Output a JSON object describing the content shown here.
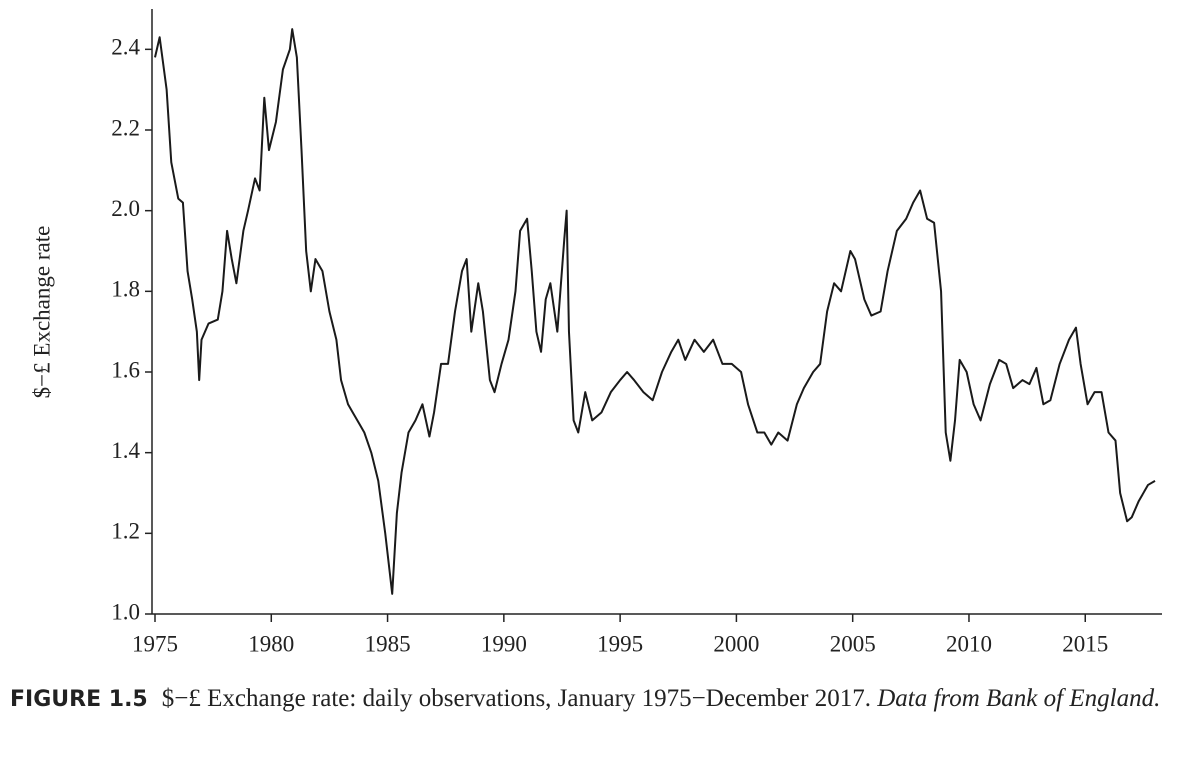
{
  "chart_data": {
    "type": "line",
    "ylabel": "$−£ Exchange rate",
    "caption": {
      "label": "FIGURE 1.5",
      "text": "$−£ Exchange rate: daily observations, January 1975−December 2017.",
      "source": "Data from Bank of England."
    },
    "color": "#1a1a1a",
    "xlim": [
      1975,
      2018.3
    ],
    "xticks": [
      1975,
      1980,
      1985,
      1990,
      1995,
      2000,
      2005,
      2010,
      2015
    ],
    "ylim": [
      1.0,
      2.5
    ],
    "yticks": [
      {
        "value": 1.0,
        "label": "1.0"
      },
      1.2,
      1.4,
      1.6,
      1.8,
      {
        "value": 2.0,
        "label": "2.0"
      },
      2.2,
      2.4
    ],
    "x": [
      1975.0,
      1975.2,
      1975.5,
      1975.7,
      1976.0,
      1976.2,
      1976.4,
      1976.6,
      1976.8,
      1976.9,
      1977.0,
      1977.3,
      1977.7,
      1977.9,
      1978.1,
      1978.3,
      1978.5,
      1978.8,
      1979.0,
      1979.3,
      1979.5,
      1979.7,
      1979.9,
      1980.2,
      1980.5,
      1980.8,
      1980.9,
      1981.1,
      1981.3,
      1981.5,
      1981.7,
      1981.9,
      1982.2,
      1982.5,
      1982.8,
      1983.0,
      1983.3,
      1983.5,
      1983.8,
      1984.0,
      1984.3,
      1984.6,
      1984.9,
      1985.1,
      1985.2,
      1985.4,
      1985.6,
      1985.9,
      1986.2,
      1986.5,
      1986.8,
      1987.0,
      1987.3,
      1987.6,
      1987.9,
      1988.2,
      1988.4,
      1988.6,
      1988.9,
      1989.1,
      1989.4,
      1989.6,
      1989.9,
      1990.2,
      1990.5,
      1990.7,
      1991.0,
      1991.2,
      1991.4,
      1991.6,
      1991.8,
      1992.0,
      1992.3,
      1992.6,
      1992.7,
      1992.8,
      1993.0,
      1993.2,
      1993.5,
      1993.8,
      1994.2,
      1994.6,
      1995.0,
      1995.3,
      1995.6,
      1996.0,
      1996.4,
      1996.8,
      1997.2,
      1997.5,
      1997.8,
      1998.2,
      1998.6,
      1999.0,
      1999.4,
      1999.8,
      2000.2,
      2000.5,
      2000.9,
      2001.2,
      2001.5,
      2001.8,
      2002.2,
      2002.6,
      2002.9,
      2003.3,
      2003.6,
      2003.9,
      2004.2,
      2004.5,
      2004.9,
      2005.1,
      2005.5,
      2005.8,
      2006.2,
      2006.5,
      2006.9,
      2007.3,
      2007.6,
      2007.9,
      2008.2,
      2008.5,
      2008.8,
      2009.0,
      2009.2,
      2009.4,
      2009.6,
      2009.9,
      2010.2,
      2010.5,
      2010.9,
      2011.3,
      2011.6,
      2011.9,
      2012.3,
      2012.6,
      2012.9,
      2013.2,
      2013.5,
      2013.9,
      2014.3,
      2014.6,
      2014.8,
      2015.1,
      2015.4,
      2015.7,
      2016.0,
      2016.3,
      2016.5,
      2016.8,
      2017.0,
      2017.3,
      2017.7,
      2018.0
    ],
    "values": [
      2.38,
      2.43,
      2.3,
      2.12,
      2.03,
      2.02,
      1.85,
      1.78,
      1.7,
      1.58,
      1.68,
      1.72,
      1.73,
      1.8,
      1.95,
      1.88,
      1.82,
      1.95,
      2.0,
      2.08,
      2.05,
      2.28,
      2.15,
      2.22,
      2.35,
      2.4,
      2.45,
      2.38,
      2.15,
      1.9,
      1.8,
      1.88,
      1.85,
      1.75,
      1.68,
      1.58,
      1.52,
      1.5,
      1.47,
      1.45,
      1.4,
      1.33,
      1.2,
      1.1,
      1.05,
      1.25,
      1.35,
      1.45,
      1.48,
      1.52,
      1.44,
      1.5,
      1.62,
      1.62,
      1.75,
      1.85,
      1.88,
      1.7,
      1.82,
      1.75,
      1.58,
      1.55,
      1.62,
      1.68,
      1.8,
      1.95,
      1.98,
      1.85,
      1.7,
      1.65,
      1.78,
      1.82,
      1.7,
      1.93,
      2.0,
      1.7,
      1.48,
      1.45,
      1.55,
      1.48,
      1.5,
      1.55,
      1.58,
      1.6,
      1.58,
      1.55,
      1.53,
      1.6,
      1.65,
      1.68,
      1.63,
      1.68,
      1.65,
      1.68,
      1.62,
      1.62,
      1.6,
      1.52,
      1.45,
      1.45,
      1.42,
      1.45,
      1.43,
      1.52,
      1.56,
      1.6,
      1.62,
      1.75,
      1.82,
      1.8,
      1.9,
      1.88,
      1.78,
      1.74,
      1.75,
      1.85,
      1.95,
      1.98,
      2.02,
      2.05,
      1.98,
      1.97,
      1.8,
      1.45,
      1.38,
      1.48,
      1.63,
      1.6,
      1.52,
      1.48,
      1.57,
      1.63,
      1.62,
      1.56,
      1.58,
      1.57,
      1.61,
      1.52,
      1.53,
      1.62,
      1.68,
      1.71,
      1.62,
      1.52,
      1.55,
      1.55,
      1.45,
      1.43,
      1.3,
      1.23,
      1.24,
      1.28,
      1.32,
      1.33
    ]
  }
}
